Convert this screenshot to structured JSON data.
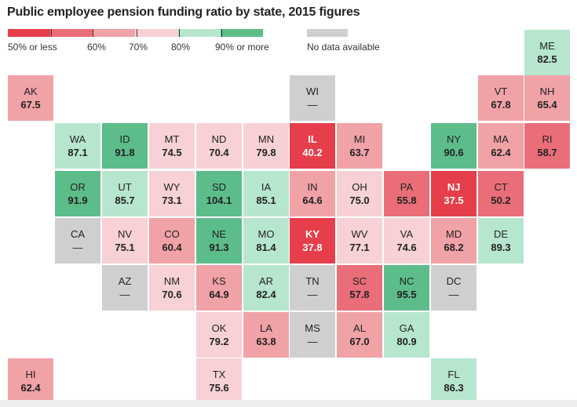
{
  "chart_data": {
    "type": "tile-map",
    "title": "Public employee pension funding ratio by state, 2015 figures",
    "legend": {
      "labels": [
        "50% or less",
        "60%",
        "70%",
        "80%",
        "90% or more"
      ],
      "no_data_label": "No data available",
      "colors": [
        "#e63e4a",
        "#ea6e79",
        "#f0a2a7",
        "#f7d1d5",
        "#b7e6cf",
        "#5cbd8a"
      ],
      "no_data_color": "#cfcfcf"
    },
    "states": [
      {
        "abbr": "ME",
        "value": 82.5
      },
      {
        "abbr": "AK",
        "value": 67.5
      },
      {
        "abbr": "WI",
        "value": null
      },
      {
        "abbr": "VT",
        "value": 67.8
      },
      {
        "abbr": "NH",
        "value": 65.4
      },
      {
        "abbr": "WA",
        "value": 87.1
      },
      {
        "abbr": "ID",
        "value": 91.8
      },
      {
        "abbr": "MT",
        "value": 74.5
      },
      {
        "abbr": "ND",
        "value": 70.4
      },
      {
        "abbr": "MN",
        "value": 79.8
      },
      {
        "abbr": "IL",
        "value": 40.2
      },
      {
        "abbr": "MI",
        "value": 63.7
      },
      {
        "abbr": "NY",
        "value": 90.6
      },
      {
        "abbr": "MA",
        "value": 62.4
      },
      {
        "abbr": "RI",
        "value": 58.7
      },
      {
        "abbr": "OR",
        "value": 91.9
      },
      {
        "abbr": "UT",
        "value": 85.7
      },
      {
        "abbr": "WY",
        "value": 73.1
      },
      {
        "abbr": "SD",
        "value": 104.1
      },
      {
        "abbr": "IA",
        "value": 85.1
      },
      {
        "abbr": "IN",
        "value": 64.6
      },
      {
        "abbr": "OH",
        "value": 75.0
      },
      {
        "abbr": "PA",
        "value": 55.8
      },
      {
        "abbr": "NJ",
        "value": 37.5
      },
      {
        "abbr": "CT",
        "value": 50.2
      },
      {
        "abbr": "CA",
        "value": null
      },
      {
        "abbr": "NV",
        "value": 75.1
      },
      {
        "abbr": "CO",
        "value": 60.4
      },
      {
        "abbr": "NE",
        "value": 91.3
      },
      {
        "abbr": "MO",
        "value": 81.4
      },
      {
        "abbr": "KY",
        "value": 37.8
      },
      {
        "abbr": "WV",
        "value": 77.1
      },
      {
        "abbr": "VA",
        "value": 74.6
      },
      {
        "abbr": "MD",
        "value": 68.2
      },
      {
        "abbr": "DE",
        "value": 89.3
      },
      {
        "abbr": "AZ",
        "value": null
      },
      {
        "abbr": "NM",
        "value": 70.6
      },
      {
        "abbr": "KS",
        "value": 64.9
      },
      {
        "abbr": "AR",
        "value": 82.4
      },
      {
        "abbr": "TN",
        "value": null
      },
      {
        "abbr": "SC",
        "value": 57.8
      },
      {
        "abbr": "NC",
        "value": 95.5
      },
      {
        "abbr": "DC",
        "value": null
      },
      {
        "abbr": "OK",
        "value": 79.2
      },
      {
        "abbr": "LA",
        "value": 63.8
      },
      {
        "abbr": "MS",
        "value": null
      },
      {
        "abbr": "AL",
        "value": 67.0
      },
      {
        "abbr": "GA",
        "value": 80.9
      },
      {
        "abbr": "HI",
        "value": 62.4
      },
      {
        "abbr": "TX",
        "value": 75.6
      },
      {
        "abbr": "FL",
        "value": 86.3
      }
    ],
    "no_value_text": "—"
  }
}
